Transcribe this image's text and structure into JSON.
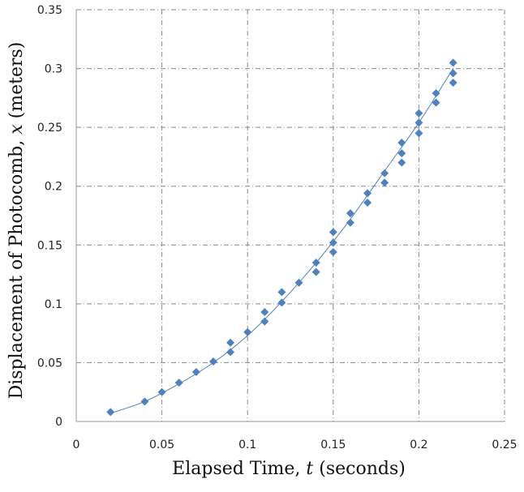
{
  "chart_data": {
    "type": "scatter",
    "title": "",
    "xlabel": {
      "prefix": "Elapsed Time, ",
      "variable": "t",
      "suffix": " (seconds)"
    },
    "ylabel": {
      "prefix": "Displacement of Photocomb, ",
      "variable": "x",
      "suffix": " (meters)"
    },
    "xlim": [
      0,
      0.25
    ],
    "ylim": [
      0,
      0.35
    ],
    "x_ticks": [
      "0",
      "0.05",
      "0.1",
      "0.15",
      "0.2",
      "0.25"
    ],
    "y_ticks": [
      "0",
      "0.05",
      "0.1",
      "0.15",
      "0.2",
      "0.25",
      "0.3",
      "0.35"
    ],
    "grid": true,
    "legend": "none",
    "marker_color": "#4F81BD",
    "series": [
      {
        "marker": "diamond",
        "points": [
          [
            0.02,
            0.008
          ],
          [
            0.04,
            0.017
          ],
          [
            0.05,
            0.025
          ],
          [
            0.06,
            0.033
          ],
          [
            0.07,
            0.042
          ],
          [
            0.08,
            0.051
          ],
          [
            0.09,
            0.059
          ],
          [
            0.09,
            0.067
          ],
          [
            0.1,
            0.076
          ],
          [
            0.11,
            0.085
          ],
          [
            0.11,
            0.093
          ],
          [
            0.12,
            0.101
          ],
          [
            0.12,
            0.11
          ],
          [
            0.13,
            0.118
          ],
          [
            0.14,
            0.127
          ],
          [
            0.14,
            0.135
          ],
          [
            0.15,
            0.144
          ],
          [
            0.15,
            0.152
          ],
          [
            0.15,
            0.161
          ],
          [
            0.16,
            0.169
          ],
          [
            0.16,
            0.177
          ],
          [
            0.17,
            0.186
          ],
          [
            0.17,
            0.194
          ],
          [
            0.18,
            0.203
          ],
          [
            0.18,
            0.211
          ],
          [
            0.19,
            0.22
          ],
          [
            0.19,
            0.228
          ],
          [
            0.19,
            0.237
          ],
          [
            0.2,
            0.245
          ],
          [
            0.2,
            0.254
          ],
          [
            0.2,
            0.262
          ],
          [
            0.21,
            0.271
          ],
          [
            0.21,
            0.279
          ],
          [
            0.22,
            0.288
          ],
          [
            0.22,
            0.296
          ],
          [
            0.22,
            0.305
          ]
        ]
      }
    ],
    "trendline": {
      "color": "#4F81BD",
      "points": [
        [
          0.02,
          0.007
        ],
        [
          0.04,
          0.017
        ],
        [
          0.06,
          0.032
        ],
        [
          0.08,
          0.05
        ],
        [
          0.1,
          0.073
        ],
        [
          0.12,
          0.102
        ],
        [
          0.14,
          0.135
        ],
        [
          0.16,
          0.172
        ],
        [
          0.18,
          0.213
        ],
        [
          0.2,
          0.254
        ],
        [
          0.22,
          0.3
        ]
      ]
    }
  }
}
